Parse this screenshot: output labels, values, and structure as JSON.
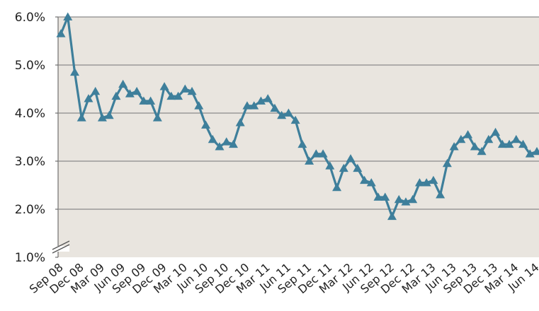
{
  "colors": {
    "plot_background": "#e9e5df",
    "gridline": "#8a8a8a",
    "series_line": "#3e7f9b",
    "text": "#222222"
  },
  "chart_data": {
    "type": "line",
    "title": "",
    "xlabel": "",
    "ylabel": "",
    "ylim": [
      1.0,
      6.0
    ],
    "y_ticks": [
      1.0,
      2.0,
      3.0,
      4.0,
      5.0,
      6.0
    ],
    "y_tick_labels": [
      "1.0%",
      "2.0%",
      "3.0%",
      "4.0%",
      "5.0%",
      "6.0%"
    ],
    "y_axis_break": true,
    "grid": true,
    "marker": "triangle",
    "x_tick_labels": [
      "Sep 08",
      "Dec 08",
      "Mar 09",
      "Jun 09",
      "Sep 09",
      "Dec 09",
      "Mar 10",
      "Jun 10",
      "Sep 10",
      "Dec 10",
      "Mar 11",
      "Jun 11",
      "Sep 11",
      "Dec 11",
      "Mar 12",
      "Jun 12",
      "Sep 12",
      "Dec 12",
      "Mar 13",
      "Jun 13",
      "Sep 13",
      "Dec 13",
      "Mar 14",
      "Jun 14"
    ],
    "series": [
      {
        "values": [
          5.65,
          6.0,
          4.85,
          3.9,
          4.3,
          4.45,
          3.9,
          3.95,
          4.35,
          4.6,
          4.4,
          4.45,
          4.25,
          4.25,
          3.9,
          4.55,
          4.35,
          4.35,
          4.5,
          4.45,
          4.15,
          3.75,
          3.45,
          3.3,
          3.4,
          3.35,
          3.8,
          4.15,
          4.15,
          4.25,
          4.3,
          4.1,
          3.95,
          4.0,
          3.85,
          3.35,
          3.0,
          3.15,
          3.15,
          2.9,
          2.45,
          2.85,
          3.05,
          2.85,
          2.6,
          2.55,
          2.25,
          2.25,
          1.85,
          2.2,
          2.15,
          2.2,
          2.55,
          2.55,
          2.6,
          2.3,
          2.95,
          3.3,
          3.45,
          3.55,
          3.3,
          3.2,
          3.45,
          3.6,
          3.35,
          3.35,
          3.45,
          3.35,
          3.15,
          3.2
        ]
      }
    ]
  }
}
